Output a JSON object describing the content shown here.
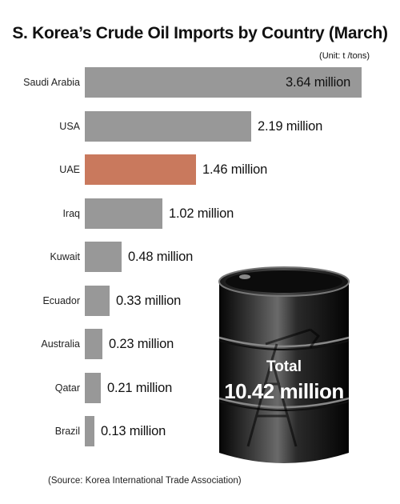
{
  "chart_data": {
    "type": "bar",
    "orientation": "horizontal",
    "title": "S. Korea’s Crude Oil Imports by Country (March)",
    "unit": "(Unit: t /tons)",
    "categories": [
      "Saudi Arabia",
      "USA",
      "UAE",
      "Iraq",
      "Kuwait",
      "Ecuador",
      "Australia",
      "Qatar",
      "Brazil"
    ],
    "values": [
      3.64,
      2.19,
      1.46,
      1.02,
      0.48,
      0.33,
      0.23,
      0.21,
      0.13
    ],
    "value_labels": [
      "3.64 million",
      "2.19 million",
      "1.46 million",
      "1.02 million",
      "0.48 million",
      "0.33 million",
      "0.23 million",
      "0.21 million",
      "0.13 million"
    ],
    "highlight_category": "UAE",
    "colors": {
      "bar": "#989898",
      "highlight": "#c9795d"
    },
    "grid": false,
    "total": {
      "label": "Total",
      "value": "10.42 million"
    },
    "source": "(Source: Korea International Trade Association)"
  }
}
